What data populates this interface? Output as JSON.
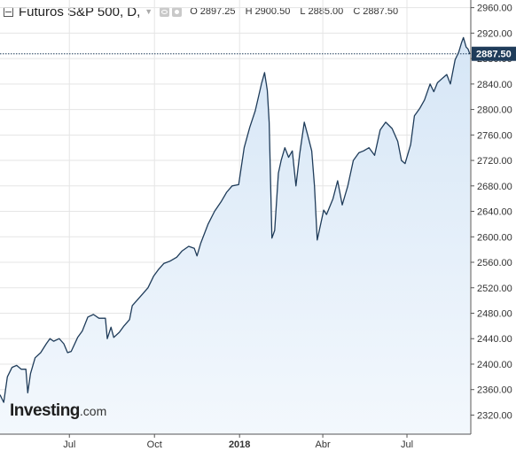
{
  "header": {
    "title": "Futuros S&P 500, D,",
    "ohlc": [
      {
        "key": "O",
        "value": "2897.25"
      },
      {
        "key": "H",
        "value": "2900.50"
      },
      {
        "key": "L",
        "value": "2885.00"
      },
      {
        "key": "C",
        "value": "2887.50"
      }
    ]
  },
  "logo": {
    "main": "Investing",
    "suffix": ".com"
  },
  "colors": {
    "line": "#1f3c5a",
    "area_top": "#d6e6f6",
    "area_bottom": "#f3f8fd",
    "last_label": "#1f3c5a",
    "grid": "#e5e5e5"
  },
  "chart_data": {
    "type": "area",
    "title": "Futuros S&P 500, D,",
    "xlabel": "",
    "ylabel": "",
    "ylim": [
      2290,
      2972
    ],
    "grid": true,
    "y_ticks": [
      2320,
      2360,
      2400,
      2440,
      2480,
      2520,
      2560,
      2600,
      2640,
      2680,
      2720,
      2760,
      2800,
      2840,
      2880,
      2920,
      2960
    ],
    "y_tick_labels": [
      "2320.00",
      "2360.00",
      "2400.00",
      "2440.00",
      "2480.00",
      "2520.00",
      "2560.00",
      "2600.00",
      "2640.00",
      "2680.00",
      "2720.00",
      "2760.00",
      "2800.00",
      "2840.00",
      "2880.00",
      "2920.00",
      "2960.00"
    ],
    "x_ticks": [
      {
        "label": "Jul",
        "x": "2017-07-01"
      },
      {
        "label": "Oct",
        "x": "2017-10-01"
      },
      {
        "label": "2018",
        "x": "2018-01-01",
        "bold": true
      },
      {
        "label": "Abr",
        "x": "2018-04-01"
      },
      {
        "label": "Jul",
        "x": "2018-07-01"
      }
    ],
    "x_range": [
      "2017-04-17",
      "2018-09-08"
    ],
    "last_value": 2887.5,
    "last_value_label": "2887.50",
    "series": [
      {
        "x": [
          "2017-04-17",
          "2017-04-21",
          "2017-04-25",
          "2017-04-30",
          "2017-05-05",
          "2017-05-10",
          "2017-05-15",
          "2017-05-17",
          "2017-05-20",
          "2017-05-25",
          "2017-05-31",
          "2017-06-06",
          "2017-06-10",
          "2017-06-14",
          "2017-06-20",
          "2017-06-25",
          "2017-06-29",
          "2017-07-03",
          "2017-07-10",
          "2017-07-15",
          "2017-07-21",
          "2017-07-27",
          "2017-08-02",
          "2017-08-09",
          "2017-08-11",
          "2017-08-15",
          "2017-08-18",
          "2017-08-24",
          "2017-08-29",
          "2017-09-04",
          "2017-09-07",
          "2017-09-12",
          "2017-09-18",
          "2017-09-24",
          "2017-09-30",
          "2017-10-05",
          "2017-10-11",
          "2017-10-18",
          "2017-10-25",
          "2017-10-31",
          "2017-11-07",
          "2017-11-13",
          "2017-11-16",
          "2017-11-20",
          "2017-11-28",
          "2017-12-05",
          "2017-12-12",
          "2017-12-18",
          "2017-12-24",
          "2017-12-31",
          "2018-01-06",
          "2018-01-12",
          "2018-01-18",
          "2018-01-25",
          "2018-01-28",
          "2018-01-31",
          "2018-02-02",
          "2018-02-05",
          "2018-02-08",
          "2018-02-12",
          "2018-02-15",
          "2018-02-19",
          "2018-02-23",
          "2018-02-27",
          "2018-03-03",
          "2018-03-07",
          "2018-03-12",
          "2018-03-16",
          "2018-03-20",
          "2018-03-23",
          "2018-03-26",
          "2018-04-02",
          "2018-04-05",
          "2018-04-12",
          "2018-04-17",
          "2018-04-22",
          "2018-04-28",
          "2018-05-04",
          "2018-05-10",
          "2018-05-15",
          "2018-05-21",
          "2018-05-27",
          "2018-06-02",
          "2018-06-08",
          "2018-06-15",
          "2018-06-21",
          "2018-06-25",
          "2018-06-29",
          "2018-07-05",
          "2018-07-09",
          "2018-07-15",
          "2018-07-20",
          "2018-07-26",
          "2018-07-30",
          "2018-08-03",
          "2018-08-09",
          "2018-08-13",
          "2018-08-17",
          "2018-08-22",
          "2018-08-26",
          "2018-08-29",
          "2018-08-31",
          "2018-09-03",
          "2018-09-05",
          "2018-09-07"
        ],
        "values": [
          2352,
          2340,
          2380,
          2395,
          2398,
          2392,
          2392,
          2355,
          2385,
          2410,
          2418,
          2432,
          2440,
          2436,
          2440,
          2432,
          2418,
          2420,
          2442,
          2452,
          2474,
          2478,
          2472,
          2472,
          2440,
          2458,
          2442,
          2450,
          2460,
          2470,
          2492,
          2500,
          2510,
          2520,
          2538,
          2548,
          2558,
          2562,
          2568,
          2578,
          2585,
          2582,
          2570,
          2590,
          2620,
          2640,
          2655,
          2670,
          2680,
          2682,
          2740,
          2772,
          2798,
          2842,
          2858,
          2830,
          2780,
          2598,
          2610,
          2700,
          2720,
          2740,
          2725,
          2735,
          2680,
          2730,
          2780,
          2758,
          2735,
          2680,
          2595,
          2642,
          2635,
          2660,
          2688,
          2650,
          2680,
          2720,
          2732,
          2735,
          2740,
          2728,
          2768,
          2780,
          2770,
          2750,
          2720,
          2715,
          2745,
          2790,
          2802,
          2815,
          2840,
          2828,
          2842,
          2850,
          2855,
          2840,
          2878,
          2890,
          2905,
          2913,
          2898,
          2895,
          2887
        ]
      }
    ]
  }
}
